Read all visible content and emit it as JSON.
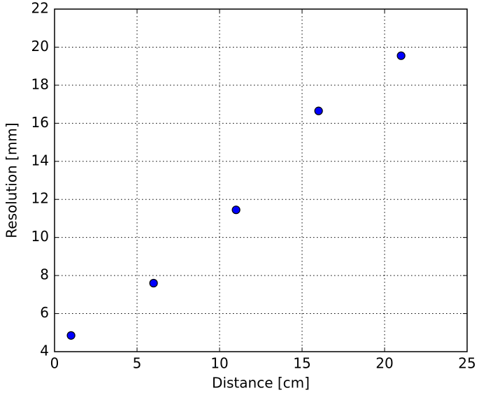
{
  "chart_data": {
    "type": "scatter",
    "xlabel": "Distance [cm]",
    "ylabel": "Resolution [mm]",
    "x": [
      1,
      6,
      11,
      16,
      21
    ],
    "series": [
      {
        "name": "Resolution",
        "color": "#0000ff",
        "values": [
          4.85,
          7.6,
          11.45,
          16.65,
          19.55
        ]
      }
    ],
    "xlim": [
      0,
      25
    ],
    "xticks": [
      0,
      5,
      10,
      15,
      20,
      25
    ],
    "ylim": [
      4,
      22
    ],
    "yticks": [
      4,
      6,
      8,
      10,
      12,
      14,
      16,
      18,
      20,
      22
    ],
    "grid": true
  }
}
